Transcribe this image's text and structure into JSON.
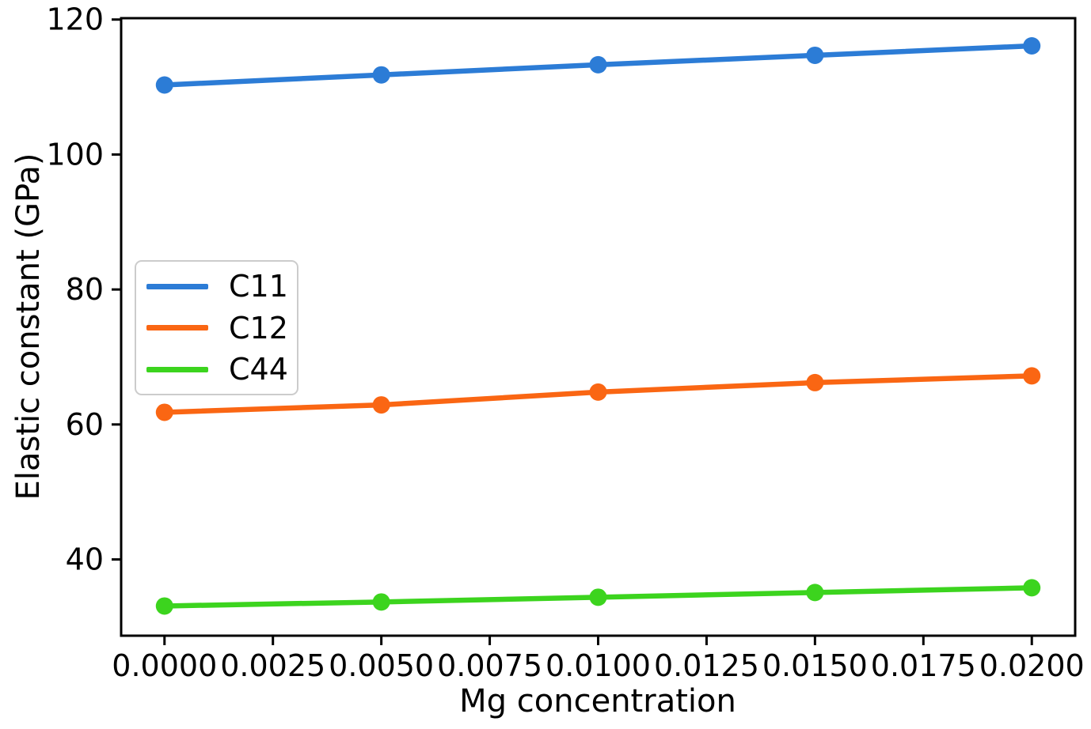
{
  "chart_data": {
    "type": "line",
    "xlabel": "Mg concentration",
    "ylabel": "Elastic constant (GPa)",
    "x": [
      0.0,
      0.005,
      0.01,
      0.015,
      0.02
    ],
    "series": [
      {
        "name": "C11",
        "color": "#2c7cd6",
        "values": [
          110.3,
          111.8,
          113.3,
          114.7,
          116.1
        ]
      },
      {
        "name": "C12",
        "color": "#fa6613",
        "values": [
          61.8,
          62.9,
          64.8,
          66.2,
          67.2
        ]
      },
      {
        "name": "C44",
        "color": "#3cd41e",
        "values": [
          33.1,
          33.7,
          34.4,
          35.1,
          35.8
        ]
      }
    ],
    "xlim": [
      -0.001,
      0.021
    ],
    "ylim": [
      28.7,
      120.2
    ],
    "xticks": {
      "values": [
        0.0,
        0.0025,
        0.005,
        0.0075,
        0.01,
        0.0125,
        0.015,
        0.0175,
        0.02
      ],
      "labels": [
        "0.0000",
        "0.0025",
        "0.0050",
        "0.0075",
        "0.0100",
        "0.0125",
        "0.0150",
        "0.0175",
        "0.0200"
      ]
    },
    "yticks": {
      "values": [
        40,
        60,
        80,
        100,
        120
      ],
      "labels": [
        "40",
        "60",
        "80",
        "100",
        "120"
      ]
    },
    "grid": false,
    "marker": "circle",
    "legend_position": "center-left",
    "axis_color": "#000000",
    "background": "#ffffff"
  }
}
